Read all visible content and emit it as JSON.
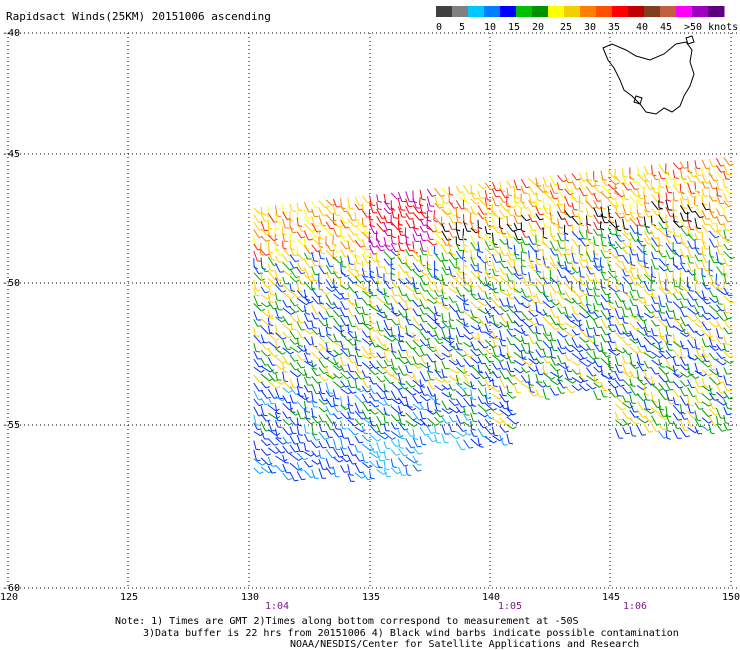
{
  "title": "Rapidsact Winds(25KM) 20151006 ascending",
  "colorbar": {
    "colors": [
      "#404040",
      "#808080",
      "#00c8ff",
      "#0080ff",
      "#0000ff",
      "#00c000",
      "#009000",
      "#ffff00",
      "#f0d000",
      "#ff8000",
      "#ff5000",
      "#ff0000",
      "#c00000",
      "#804020",
      "#c06040",
      "#ff00ff",
      "#a000c0",
      "#600080"
    ],
    "labels": [
      "0",
      "5",
      "10",
      "15",
      "20",
      "25",
      "30",
      "35",
      "40",
      "45",
      ">50 knots"
    ]
  },
  "lat_labels": [
    "-40",
    "-45",
    "-50",
    "-55",
    "-60"
  ],
  "lon_labels": [
    "120",
    "125",
    "130",
    "135",
    "140",
    "145",
    "150"
  ],
  "time_labels": [
    "1:04",
    "1:05",
    "1:06"
  ],
  "notes": [
    "Note: 1) Times are GMT 2)Times along bottom correspond to measurement at -50S",
    "3)Data buffer is 22 hrs from 20151006 4) Black wind barbs indicate possible contamination",
    "NOAA/NESDIS/Center for Satellite Applications and Research"
  ],
  "map": {
    "lat_range": [
      -60,
      -40
    ],
    "lon_range": [
      120,
      150
    ],
    "swath": {
      "lon": [
        130,
        150
      ],
      "lat_north_west": -47,
      "lat_north_east": -45,
      "lat_south": -56.5
    }
  }
}
